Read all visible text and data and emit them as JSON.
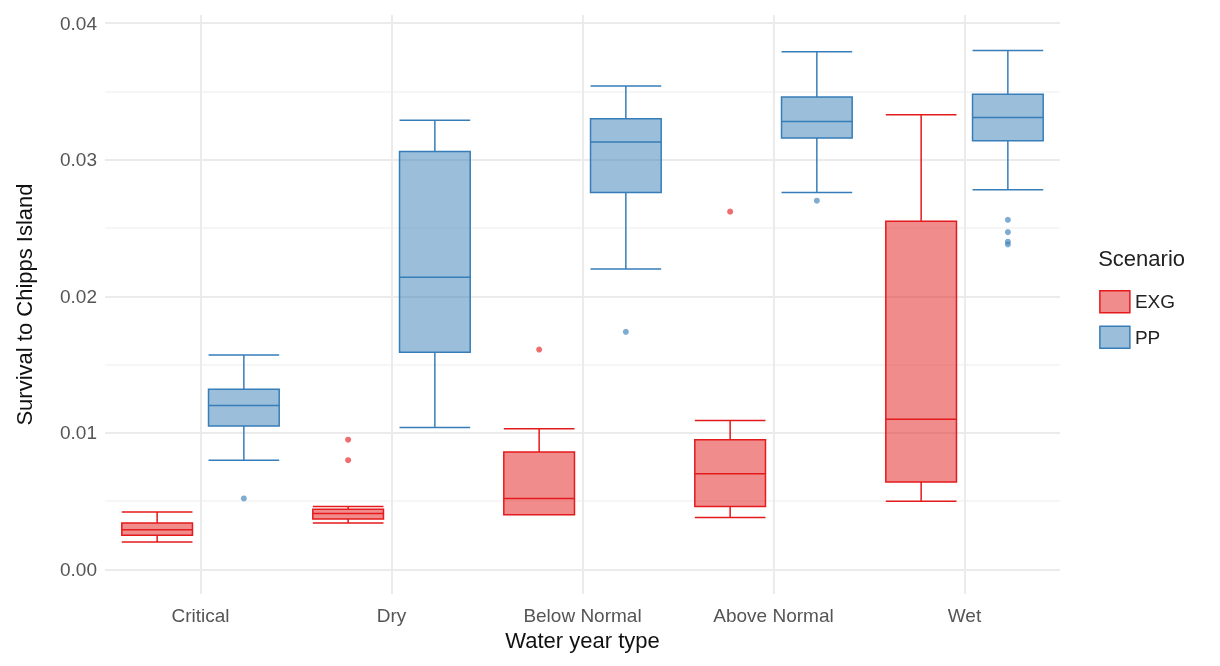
{
  "chart_data": {
    "type": "box",
    "xlabel": "Water year type",
    "ylabel": "Survival to Chipps Island",
    "legend_title": "Scenario",
    "legend": "right",
    "grid": true,
    "categories": [
      "Critical",
      "Dry",
      "Below Normal",
      "Above Normal",
      "Wet"
    ],
    "ylim": [
      -0.0018,
      0.0406
    ],
    "yticks": [
      {
        "value": 0,
        "label": "0.00"
      },
      0.01,
      0.02,
      0.03,
      0.04
    ],
    "series": [
      {
        "name": "EXG",
        "color": "#e41a1c",
        "boxes": [
          {
            "low": 0.002,
            "q1": 0.0025,
            "median": 0.0029,
            "q3": 0.0034,
            "high": 0.0042
          },
          {
            "low": 0.0034,
            "q1": 0.0037,
            "median": 0.0041,
            "q3": 0.0044,
            "high": 0.0046,
            "outliers": [
              0.0095,
              0.008
            ]
          },
          {
            "low": 0.004,
            "q1": 0.004,
            "median": 0.0052,
            "q3": 0.0086,
            "high": 0.0103,
            "outliers": [
              0.0161
            ]
          },
          {
            "low": 0.0038,
            "q1": 0.0046,
            "median": 0.007,
            "q3": 0.0095,
            "high": 0.0109,
            "outliers": [
              0.0262
            ]
          },
          {
            "low": 0.005,
            "q1": 0.0064,
            "median": 0.011,
            "q3": 0.0255,
            "high": 0.0333
          }
        ]
      },
      {
        "name": "PP",
        "color": "#377eb8",
        "boxes": [
          {
            "low": 0.008,
            "q1": 0.0105,
            "median": 0.012,
            "q3": 0.0132,
            "high": 0.0157,
            "outliers": [
              0.0052
            ]
          },
          {
            "low": 0.0104,
            "q1": 0.0159,
            "median": 0.0214,
            "q3": 0.0306,
            "high": 0.0329
          },
          {
            "low": 0.022,
            "q1": 0.0276,
            "median": 0.0313,
            "q3": 0.033,
            "high": 0.0354,
            "outliers": [
              0.0174
            ]
          },
          {
            "low": 0.0276,
            "q1": 0.0316,
            "median": 0.0328,
            "q3": 0.0346,
            "high": 0.0379,
            "outliers": [
              0.027
            ]
          },
          {
            "low": 0.0278,
            "q1": 0.0314,
            "median": 0.0331,
            "q3": 0.0348,
            "high": 0.038,
            "outliers": [
              0.0256,
              0.0247,
              0.024,
              0.0238
            ]
          }
        ]
      }
    ]
  }
}
